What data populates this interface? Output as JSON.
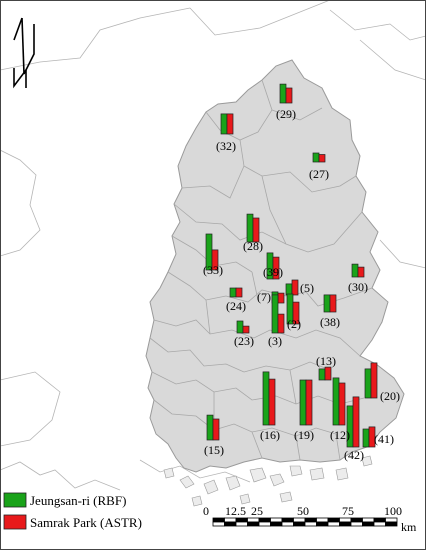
{
  "legend": {
    "entries": [
      {
        "label": "Jeungsan-ri (RBF)",
        "color": "#1aa31a"
      },
      {
        "label": "Samrak Park (ASTR)",
        "color": "#e8191b"
      }
    ]
  },
  "scale_bar": {
    "labels": [
      "0",
      "12.5",
      "25",
      "50",
      "75",
      "100"
    ],
    "unit": "km"
  },
  "colors": {
    "region_fill": "#d9d9d9",
    "region_stroke": "#9a9a9a",
    "bar_outline": "#222222"
  },
  "sites": [
    {
      "label": "(29)",
      "rbf": 0.63,
      "astr": 0.5
    },
    {
      "label": "(32)",
      "rbf": 0.67,
      "astr": 0.67
    },
    {
      "label": "(27)",
      "rbf": 0.3,
      "astr": 0.25
    },
    {
      "label": "(28)",
      "rbf": 0.93,
      "astr": 0.8
    },
    {
      "label": "(33)",
      "rbf": 1.2,
      "astr": 0.67
    },
    {
      "label": "(39)",
      "rbf": 0.87,
      "astr": 0.73
    },
    {
      "label": "(5)",
      "rbf": 0.37,
      "astr": 0.5
    },
    {
      "label": "(30)",
      "rbf": 0.43,
      "astr": 0.33
    },
    {
      "label": "(24)",
      "rbf": 0.3,
      "astr": 0.3
    },
    {
      "label": "(7)",
      "rbf": 0.37,
      "astr": 0.33
    },
    {
      "label": "(38)",
      "rbf": 0.57,
      "astr": 0.57
    },
    {
      "label": "(2)",
      "rbf": 1.0,
      "astr": 0.73
    },
    {
      "label": "(23)",
      "rbf": 0.4,
      "astr": 0.23
    },
    {
      "label": "(3)",
      "rbf": 1.27,
      "astr": 0.63
    },
    {
      "label": "(13)",
      "rbf": 0.37,
      "astr": 0.43
    },
    {
      "label": "(20)",
      "rbf": 0.97,
      "astr": 1.17
    },
    {
      "label": "(16)",
      "rbf": 1.77,
      "astr": 1.53
    },
    {
      "label": "(19)",
      "rbf": 1.5,
      "astr": 1.5
    },
    {
      "label": "(12)",
      "rbf": 1.57,
      "astr": 1.4
    },
    {
      "label": "(42)",
      "rbf": 1.37,
      "astr": 1.67
    },
    {
      "label": "(41)",
      "rbf": 0.6,
      "astr": 0.67
    },
    {
      "label": "(15)",
      "rbf": 0.83,
      "astr": 0.7
    }
  ]
}
